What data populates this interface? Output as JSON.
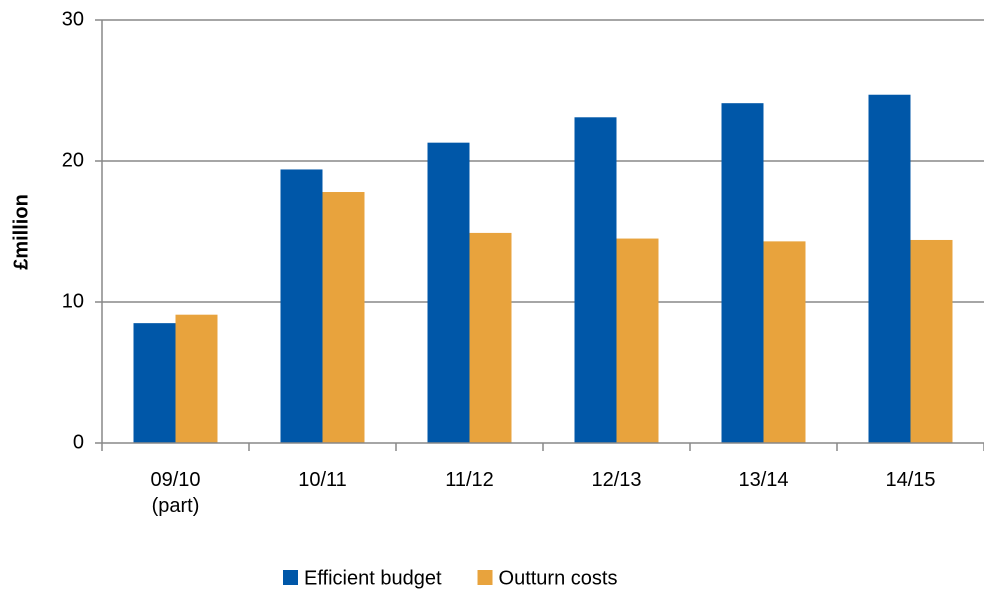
{
  "chart_data": {
    "type": "bar",
    "y_label": "£million",
    "categories": [
      "09/10 (part)",
      "10/11",
      "11/12",
      "12/13",
      "13/14",
      "14/15"
    ],
    "series": [
      {
        "name": "Efficient budget",
        "color": "#0057a8",
        "values": [
          8.5,
          19.4,
          21.3,
          23.1,
          24.1,
          24.7
        ]
      },
      {
        "name": "Outturn costs",
        "color": "#e8a33d",
        "values": [
          9.1,
          17.8,
          14.9,
          14.5,
          14.3,
          14.4
        ]
      }
    ],
    "ylim": [
      0,
      30
    ],
    "yticks": [
      0,
      10,
      20,
      30
    ],
    "grid": true,
    "legend": "bottom"
  }
}
